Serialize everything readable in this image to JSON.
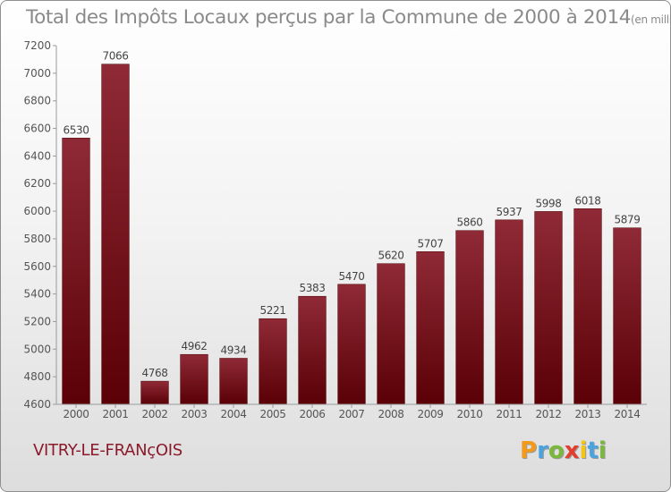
{
  "chart_data": {
    "type": "bar",
    "title": "Total des Impôts Locaux perçus par la Commune de 2000 à 2014",
    "unit": "(en milliers d'€)",
    "categories": [
      "2000",
      "2001",
      "2002",
      "2003",
      "2004",
      "2005",
      "2006",
      "2007",
      "2008",
      "2009",
      "2010",
      "2011",
      "2012",
      "2013",
      "2014"
    ],
    "values": [
      6530,
      7066,
      4768,
      4962,
      4934,
      5221,
      5383,
      5470,
      5620,
      5707,
      5860,
      5937,
      5998,
      6018,
      5879
    ],
    "ylim": [
      4600,
      7200
    ],
    "yticks": [
      4600,
      4800,
      5000,
      5200,
      5400,
      5600,
      5800,
      6000,
      6200,
      6400,
      6600,
      6800,
      7000,
      7200
    ],
    "xlabel": "",
    "ylabel": "",
    "grid": false,
    "bar_color": "#8b1a2b"
  },
  "commune": "VITRY-LE-FRANçOIS",
  "logo": {
    "letters": [
      "P",
      "r",
      "o",
      "x",
      "i",
      "t",
      "i"
    ],
    "colors": [
      "#f39a1a",
      "#4aa3df",
      "#79b83a",
      "#e23f2f",
      "#f3c515",
      "#4aa3df",
      "#79b83a"
    ]
  }
}
